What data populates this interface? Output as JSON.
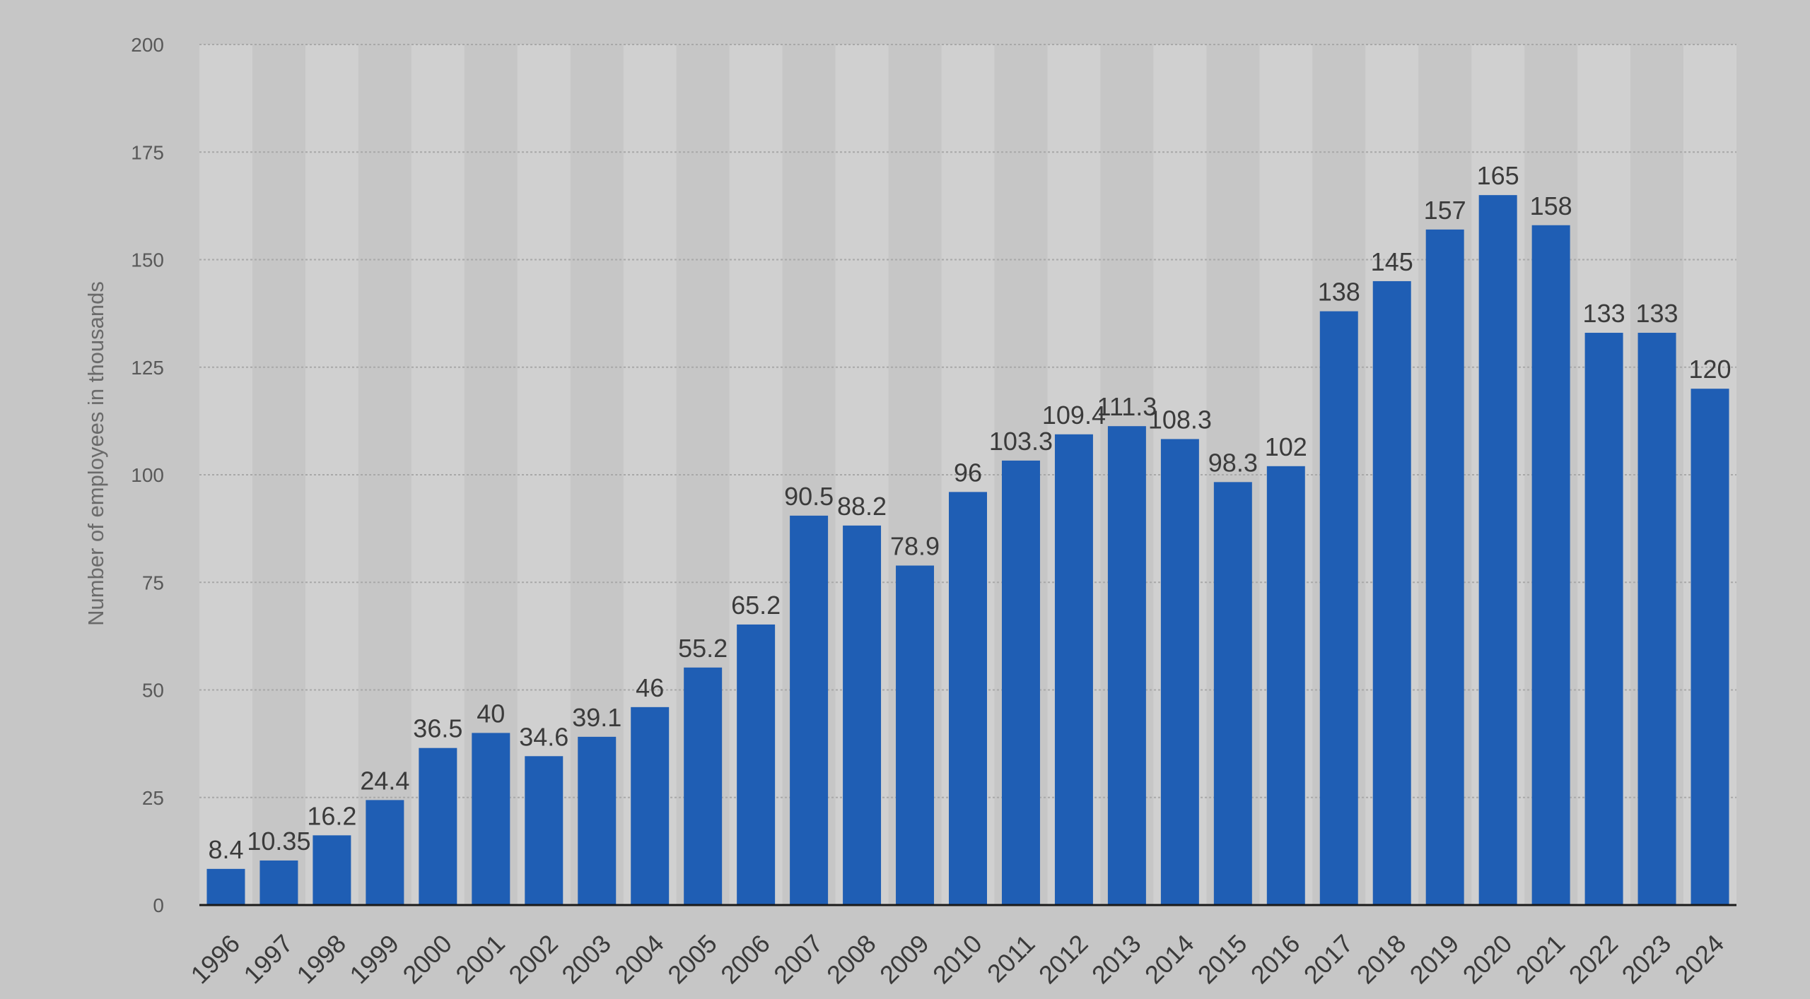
{
  "chart_data": {
    "type": "bar",
    "title": "",
    "xlabel": "",
    "ylabel": "Number of employees in thousands",
    "ylim": [
      0,
      200
    ],
    "y_ticks": [
      0,
      25,
      50,
      75,
      100,
      125,
      150,
      175,
      200
    ],
    "grid": true,
    "legend": "none",
    "bar_color": "#1f5eb4",
    "categories": [
      "1996",
      "1997",
      "1998",
      "1999",
      "2000",
      "2001",
      "2002",
      "2003",
      "2004",
      "2005",
      "2006",
      "2007",
      "2008",
      "2009",
      "2010",
      "2011",
      "2012",
      "2013",
      "2014",
      "2015",
      "2016",
      "2017",
      "2018",
      "2019",
      "2020",
      "2021",
      "2022",
      "2023",
      "2024"
    ],
    "values": [
      8.4,
      10.35,
      16.2,
      24.4,
      36.5,
      40,
      34.6,
      39.1,
      46,
      55.2,
      65.2,
      90.5,
      88.2,
      78.9,
      96,
      103.3,
      109.4,
      111.3,
      108.3,
      98.3,
      102,
      138,
      145,
      157,
      165,
      158,
      133,
      133,
      120
    ],
    "value_labels": [
      "8.4",
      "10.35",
      "16.2",
      "24.4",
      "36.5",
      "40",
      "34.6",
      "39.1",
      "46",
      "55.2",
      "65.2",
      "90.5",
      "88.2",
      "78.9",
      "96",
      "103.3",
      "109.4",
      "111.3",
      "108.3",
      "98.3",
      "102",
      "138",
      "145",
      "157",
      "165",
      "158",
      "133",
      "133",
      "120"
    ]
  }
}
